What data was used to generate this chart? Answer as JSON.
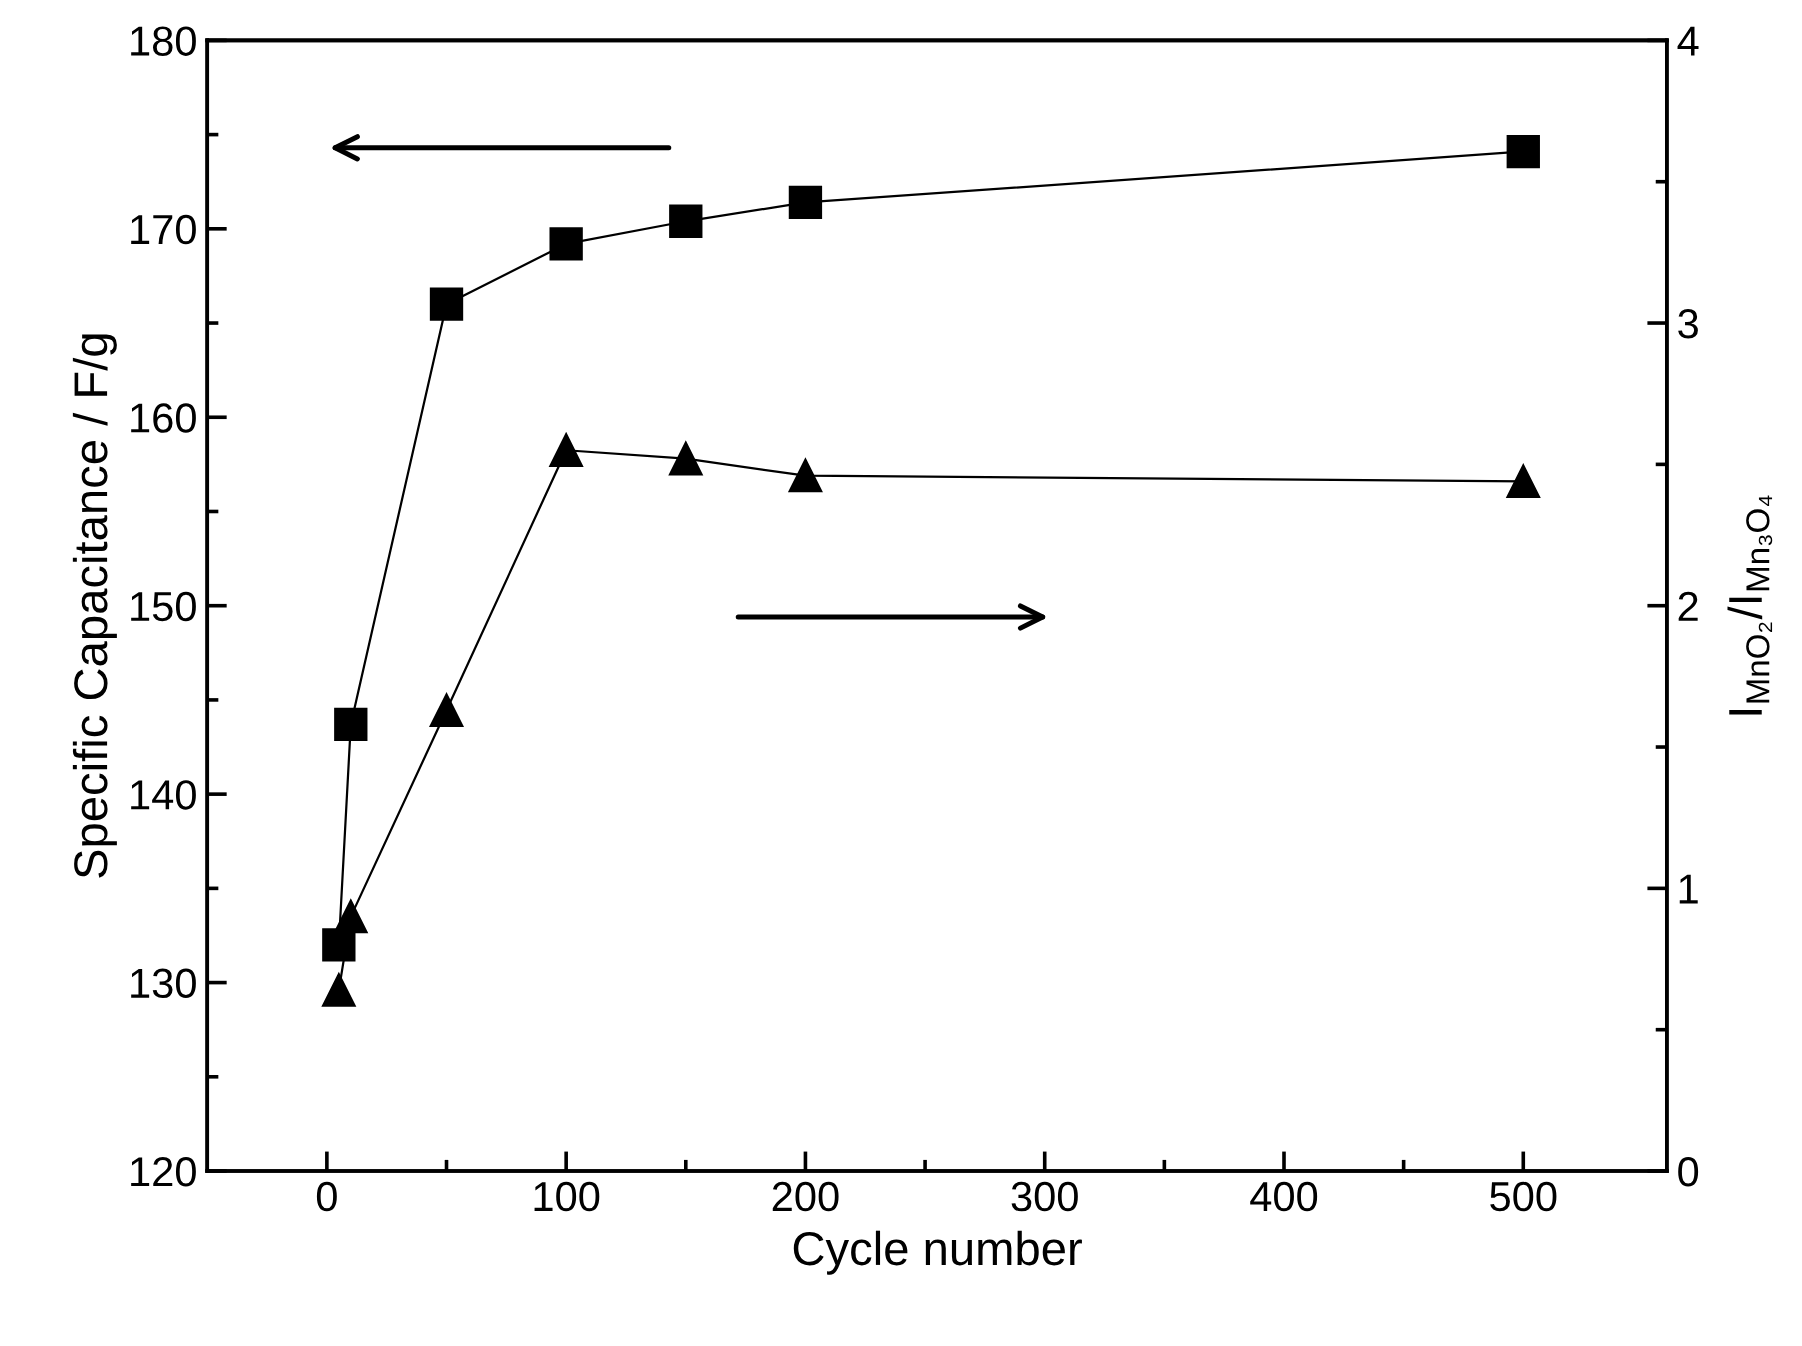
{
  "chart_data": {
    "type": "line",
    "xlabel": "Cycle number",
    "ylabel": "Specific Capacitance / F/g",
    "y2label": "I$_{MnO₂}$/I$_{Mn₃O₄}$",
    "x": [
      5,
      10,
      50,
      100,
      150,
      200,
      500
    ],
    "series": [
      {
        "color": "#000000",
        "marker": "square",
        "values": [
          132,
          143.7,
          166,
          169.2,
          170.4,
          171.4,
          174.1
        ]
      },
      {
        "color": "#000000",
        "marker": "triangle",
        "axis": "y2",
        "values": [
          0.64,
          0.9,
          1.63,
          2.55,
          2.52,
          2.46,
          2.44
        ]
      }
    ],
    "xlim": [
      -50,
      560
    ],
    "xticks": [
      0,
      100,
      200,
      300,
      400,
      500
    ],
    "ylim": [
      120,
      180
    ],
    "yticks": [
      120,
      130,
      140,
      150,
      160,
      170,
      180
    ],
    "y2lim": [
      0,
      4
    ],
    "y2ticks": [
      0,
      1,
      2,
      3,
      4
    ],
    "line_style": "solid",
    "grid": false,
    "legend": false
  }
}
